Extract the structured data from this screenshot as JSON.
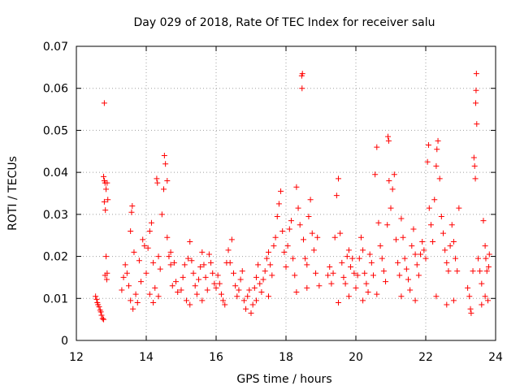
{
  "chart_data": {
    "type": "scatter",
    "title": "Day 029 of 2018, Rate Of TEC Index for receiver salu",
    "xlabel": "GPS time / hours",
    "ylabel": "ROTI / TECUs",
    "xlim": [
      12,
      24
    ],
    "ylim": [
      0,
      0.07
    ],
    "xticks": [
      12,
      14,
      16,
      18,
      20,
      22,
      24
    ],
    "yticks": [
      0,
      0.01,
      0.02,
      0.03,
      0.04,
      0.05,
      0.06,
      0.07
    ],
    "xtick_labels": [
      "12",
      "14",
      "16",
      "18",
      "20",
      "22",
      "24"
    ],
    "ytick_labels": [
      "0",
      "0.01",
      "0.02",
      "0.03",
      "0.04",
      "0.05",
      "0.06",
      "0.07"
    ],
    "grid": true,
    "marker": "+",
    "color": "#ff0000",
    "series": [
      {
        "name": "ROTI",
        "points": [
          [
            12.55,
            0.0105
          ],
          [
            12.58,
            0.0098
          ],
          [
            12.6,
            0.009
          ],
          [
            12.62,
            0.0085
          ],
          [
            12.65,
            0.008
          ],
          [
            12.68,
            0.0072
          ],
          [
            12.7,
            0.0068
          ],
          [
            12.72,
            0.006
          ],
          [
            12.75,
            0.0052
          ],
          [
            12.78,
            0.005
          ],
          [
            12.8,
            0.0565
          ],
          [
            12.78,
            0.039
          ],
          [
            12.8,
            0.038
          ],
          [
            12.82,
            0.0375
          ],
          [
            12.85,
            0.036
          ],
          [
            12.88,
            0.0375
          ],
          [
            12.8,
            0.033
          ],
          [
            12.83,
            0.031
          ],
          [
            12.85,
            0.02
          ],
          [
            12.88,
            0.016
          ],
          [
            12.82,
            0.0155
          ],
          [
            12.87,
            0.0145
          ],
          [
            12.9,
            0.0335
          ],
          [
            13.3,
            0.012
          ],
          [
            13.35,
            0.015
          ],
          [
            13.4,
            0.018
          ],
          [
            13.45,
            0.016
          ],
          [
            13.5,
            0.013
          ],
          [
            13.55,
            0.026
          ],
          [
            13.58,
            0.0305
          ],
          [
            13.6,
            0.032
          ],
          [
            13.65,
            0.021
          ],
          [
            13.7,
            0.011
          ],
          [
            13.75,
            0.009
          ],
          [
            13.8,
            0.019
          ],
          [
            13.85,
            0.014
          ],
          [
            13.9,
            0.024
          ],
          [
            13.95,
            0.0225
          ],
          [
            13.55,
            0.0095
          ],
          [
            13.62,
            0.0075
          ],
          [
            14.0,
            0.016
          ],
          [
            14.05,
            0.022
          ],
          [
            14.1,
            0.026
          ],
          [
            14.15,
            0.028
          ],
          [
            14.2,
            0.0185
          ],
          [
            14.25,
            0.0125
          ],
          [
            14.3,
            0.0385
          ],
          [
            14.32,
            0.0375
          ],
          [
            14.35,
            0.02
          ],
          [
            14.4,
            0.017
          ],
          [
            14.45,
            0.03
          ],
          [
            14.5,
            0.036
          ],
          [
            14.52,
            0.044
          ],
          [
            14.55,
            0.042
          ],
          [
            14.6,
            0.038
          ],
          [
            14.65,
            0.02
          ],
          [
            14.7,
            0.018
          ],
          [
            14.75,
            0.013
          ],
          [
            14.8,
            0.0185
          ],
          [
            14.85,
            0.014
          ],
          [
            14.9,
            0.0115
          ],
          [
            14.1,
            0.011
          ],
          [
            14.2,
            0.009
          ],
          [
            14.35,
            0.0105
          ],
          [
            14.6,
            0.0245
          ],
          [
            14.7,
            0.021
          ],
          [
            15.0,
            0.012
          ],
          [
            15.05,
            0.015
          ],
          [
            15.1,
            0.018
          ],
          [
            15.15,
            0.0095
          ],
          [
            15.2,
            0.0195
          ],
          [
            15.25,
            0.0235
          ],
          [
            15.3,
            0.019
          ],
          [
            15.35,
            0.016
          ],
          [
            15.4,
            0.013
          ],
          [
            15.45,
            0.011
          ],
          [
            15.5,
            0.0145
          ],
          [
            15.55,
            0.0175
          ],
          [
            15.6,
            0.021
          ],
          [
            15.65,
            0.018
          ],
          [
            15.7,
            0.015
          ],
          [
            15.75,
            0.012
          ],
          [
            15.8,
            0.0205
          ],
          [
            15.85,
            0.0185
          ],
          [
            15.9,
            0.016
          ],
          [
            15.95,
            0.0135
          ],
          [
            15.25,
            0.0085
          ],
          [
            15.6,
            0.0095
          ],
          [
            16.0,
            0.0125
          ],
          [
            16.05,
            0.0155
          ],
          [
            16.1,
            0.0135
          ],
          [
            16.15,
            0.011
          ],
          [
            16.2,
            0.0095
          ],
          [
            16.25,
            0.0085
          ],
          [
            16.3,
            0.0185
          ],
          [
            16.35,
            0.0215
          ],
          [
            16.4,
            0.0185
          ],
          [
            16.45,
            0.024
          ],
          [
            16.5,
            0.016
          ],
          [
            16.55,
            0.013
          ],
          [
            16.6,
            0.0105
          ],
          [
            16.65,
            0.012
          ],
          [
            16.7,
            0.0145
          ],
          [
            16.75,
            0.0165
          ],
          [
            16.8,
            0.0095
          ],
          [
            16.85,
            0.0075
          ],
          [
            16.9,
            0.0105
          ],
          [
            16.95,
            0.012
          ],
          [
            17.0,
            0.0065
          ],
          [
            17.05,
            0.0085
          ],
          [
            17.1,
            0.0125
          ],
          [
            17.15,
            0.015
          ],
          [
            17.2,
            0.018
          ],
          [
            17.25,
            0.0135
          ],
          [
            17.3,
            0.0115
          ],
          [
            17.35,
            0.0145
          ],
          [
            17.4,
            0.0165
          ],
          [
            17.45,
            0.0195
          ],
          [
            17.5,
            0.021
          ],
          [
            17.55,
            0.018
          ],
          [
            17.6,
            0.0155
          ],
          [
            17.65,
            0.0225
          ],
          [
            17.7,
            0.0245
          ],
          [
            17.75,
            0.0295
          ],
          [
            17.8,
            0.0325
          ],
          [
            17.85,
            0.0355
          ],
          [
            17.9,
            0.026
          ],
          [
            17.95,
            0.021
          ],
          [
            17.15,
            0.0095
          ],
          [
            17.5,
            0.0105
          ],
          [
            18.0,
            0.0175
          ],
          [
            18.05,
            0.0225
          ],
          [
            18.1,
            0.0265
          ],
          [
            18.15,
            0.0285
          ],
          [
            18.2,
            0.0195
          ],
          [
            18.25,
            0.0155
          ],
          [
            18.3,
            0.0365
          ],
          [
            18.35,
            0.0315
          ],
          [
            18.4,
            0.0275
          ],
          [
            18.45,
            0.063
          ],
          [
            18.47,
            0.0635
          ],
          [
            18.46,
            0.06
          ],
          [
            18.5,
            0.024
          ],
          [
            18.55,
            0.0195
          ],
          [
            18.6,
            0.018
          ],
          [
            18.65,
            0.0295
          ],
          [
            18.7,
            0.0335
          ],
          [
            18.75,
            0.0255
          ],
          [
            18.8,
            0.0215
          ],
          [
            18.85,
            0.016
          ],
          [
            18.9,
            0.0245
          ],
          [
            18.95,
            0.013
          ],
          [
            18.3,
            0.0115
          ],
          [
            18.6,
            0.0125
          ],
          [
            19.2,
            0.0155
          ],
          [
            19.25,
            0.0175
          ],
          [
            19.3,
            0.0135
          ],
          [
            19.35,
            0.016
          ],
          [
            19.4,
            0.0245
          ],
          [
            19.45,
            0.0345
          ],
          [
            19.5,
            0.0385
          ],
          [
            19.55,
            0.0255
          ],
          [
            19.6,
            0.0185
          ],
          [
            19.65,
            0.015
          ],
          [
            19.7,
            0.0135
          ],
          [
            19.75,
            0.02
          ],
          [
            19.8,
            0.0215
          ],
          [
            19.85,
            0.0175
          ],
          [
            19.9,
            0.0195
          ],
          [
            19.95,
            0.016
          ],
          [
            19.5,
            0.009
          ],
          [
            19.8,
            0.0105
          ],
          [
            20.0,
            0.0125
          ],
          [
            20.05,
            0.0155
          ],
          [
            20.1,
            0.0195
          ],
          [
            20.15,
            0.0245
          ],
          [
            20.2,
            0.0215
          ],
          [
            20.25,
            0.016
          ],
          [
            20.3,
            0.0135
          ],
          [
            20.35,
            0.0115
          ],
          [
            20.4,
            0.0205
          ],
          [
            20.45,
            0.0185
          ],
          [
            20.5,
            0.0155
          ],
          [
            20.55,
            0.0395
          ],
          [
            20.6,
            0.046
          ],
          [
            20.65,
            0.028
          ],
          [
            20.7,
            0.0225
          ],
          [
            20.75,
            0.0195
          ],
          [
            20.8,
            0.0165
          ],
          [
            20.85,
            0.014
          ],
          [
            20.9,
            0.0275
          ],
          [
            20.92,
            0.0485
          ],
          [
            20.94,
            0.0475
          ],
          [
            20.95,
            0.038
          ],
          [
            20.2,
            0.0095
          ],
          [
            20.6,
            0.011
          ],
          [
            21.0,
            0.0315
          ],
          [
            21.05,
            0.036
          ],
          [
            21.1,
            0.0395
          ],
          [
            21.15,
            0.024
          ],
          [
            21.2,
            0.0185
          ],
          [
            21.25,
            0.0155
          ],
          [
            21.3,
            0.029
          ],
          [
            21.35,
            0.0245
          ],
          [
            21.4,
            0.0195
          ],
          [
            21.45,
            0.017
          ],
          [
            21.5,
            0.0145
          ],
          [
            21.55,
            0.012
          ],
          [
            21.6,
            0.0225
          ],
          [
            21.65,
            0.0265
          ],
          [
            21.7,
            0.0205
          ],
          [
            21.75,
            0.018
          ],
          [
            21.8,
            0.0155
          ],
          [
            21.85,
            0.0205
          ],
          [
            21.9,
            0.0235
          ],
          [
            21.95,
            0.0215
          ],
          [
            21.3,
            0.0105
          ],
          [
            21.7,
            0.0095
          ],
          [
            22.0,
            0.0195
          ],
          [
            22.05,
            0.0425
          ],
          [
            22.08,
            0.0465
          ],
          [
            22.1,
            0.0315
          ],
          [
            22.15,
            0.0275
          ],
          [
            22.2,
            0.0235
          ],
          [
            22.25,
            0.0335
          ],
          [
            22.3,
            0.0415
          ],
          [
            22.32,
            0.0455
          ],
          [
            22.35,
            0.0475
          ],
          [
            22.4,
            0.0385
          ],
          [
            22.45,
            0.0295
          ],
          [
            22.5,
            0.0255
          ],
          [
            22.55,
            0.0215
          ],
          [
            22.6,
            0.0185
          ],
          [
            22.65,
            0.0165
          ],
          [
            22.7,
            0.0225
          ],
          [
            22.75,
            0.0275
          ],
          [
            22.8,
            0.0235
          ],
          [
            22.85,
            0.0195
          ],
          [
            22.9,
            0.0165
          ],
          [
            22.95,
            0.0315
          ],
          [
            22.3,
            0.0105
          ],
          [
            22.6,
            0.0085
          ],
          [
            22.8,
            0.0095
          ],
          [
            23.2,
            0.0125
          ],
          [
            23.25,
            0.0105
          ],
          [
            23.28,
            0.0075
          ],
          [
            23.3,
            0.0065
          ],
          [
            23.35,
            0.0165
          ],
          [
            23.38,
            0.0435
          ],
          [
            23.4,
            0.0415
          ],
          [
            23.42,
            0.0385
          ],
          [
            23.45,
            0.0635
          ],
          [
            23.44,
            0.0595
          ],
          [
            23.43,
            0.0565
          ],
          [
            23.46,
            0.0515
          ],
          [
            23.5,
            0.0195
          ],
          [
            23.55,
            0.0165
          ],
          [
            23.6,
            0.0135
          ],
          [
            23.65,
            0.0285
          ],
          [
            23.7,
            0.0225
          ],
          [
            23.72,
            0.0195
          ],
          [
            23.75,
            0.0165
          ],
          [
            23.78,
            0.0095
          ],
          [
            23.8,
            0.0175
          ],
          [
            23.82,
            0.0205
          ],
          [
            23.6,
            0.0085
          ],
          [
            23.7,
            0.0105
          ]
        ]
      }
    ]
  }
}
